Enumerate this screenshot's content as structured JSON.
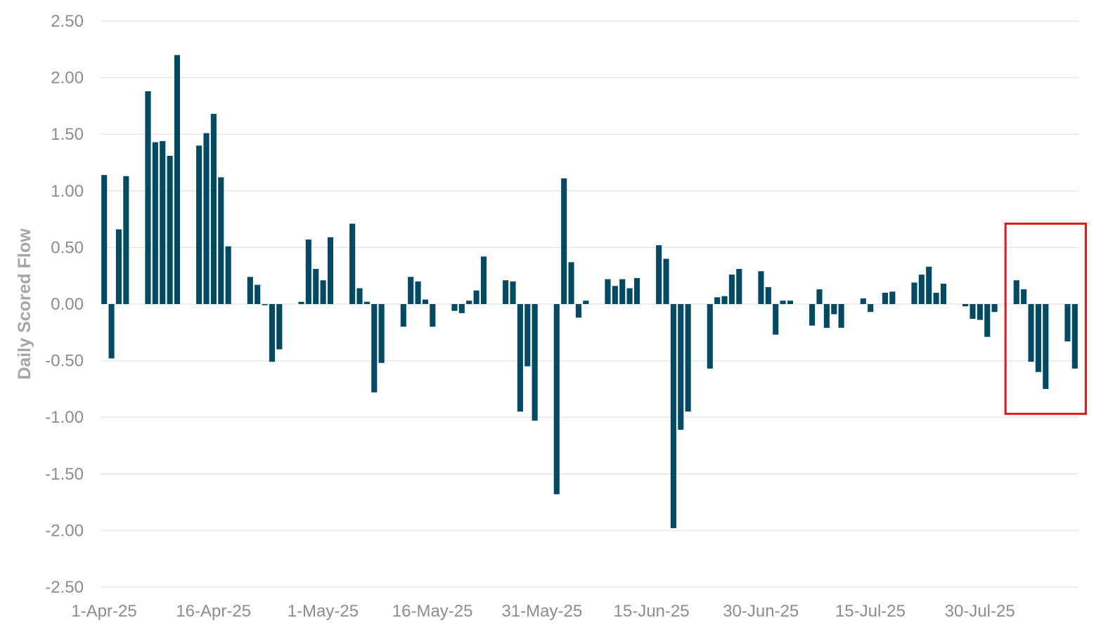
{
  "chart_data": {
    "type": "bar",
    "title": "",
    "xlabel": "",
    "ylabel": "Daily Scored Flow",
    "ylim": [
      -2.5,
      2.5
    ],
    "yticks": [
      "2.50",
      "2.00",
      "1.50",
      "1.00",
      "0.50",
      "0.00",
      "-0.50",
      "-1.00",
      "-1.50",
      "-2.00",
      "-2.50"
    ],
    "ytick_values": [
      2.5,
      2.0,
      1.5,
      1.0,
      0.5,
      0.0,
      -0.5,
      -1.0,
      -1.5,
      -2.0,
      -2.5
    ],
    "x_range": [
      "2025-04-01",
      "2025-08-13"
    ],
    "xticks": [
      {
        "label": "1-Apr-25",
        "date": "2025-04-01"
      },
      {
        "label": "16-Apr-25",
        "date": "2025-04-16"
      },
      {
        "label": "1-May-25",
        "date": "2025-05-01"
      },
      {
        "label": "16-May-25",
        "date": "2025-05-16"
      },
      {
        "label": "31-May-25",
        "date": "2025-05-31"
      },
      {
        "label": "15-Jun-25",
        "date": "2025-06-15"
      },
      {
        "label": "30-Jun-25",
        "date": "2025-06-30"
      },
      {
        "label": "15-Jul-25",
        "date": "2025-07-15"
      },
      {
        "label": "30-Jul-25",
        "date": "2025-07-30"
      }
    ],
    "bar_color": "#004b63",
    "grid": true,
    "series": [
      {
        "points": [
          [
            "2025-04-01",
            1.14
          ],
          [
            "2025-04-02",
            -0.48
          ],
          [
            "2025-04-03",
            0.66
          ],
          [
            "2025-04-04",
            1.13
          ],
          [
            "2025-04-07",
            1.88
          ],
          [
            "2025-04-08",
            1.43
          ],
          [
            "2025-04-09",
            1.44
          ],
          [
            "2025-04-10",
            1.31
          ],
          [
            "2025-04-11",
            2.2
          ],
          [
            "2025-04-14",
            1.4
          ],
          [
            "2025-04-15",
            1.51
          ],
          [
            "2025-04-16",
            1.68
          ],
          [
            "2025-04-17",
            1.12
          ],
          [
            "2025-04-18",
            0.51
          ],
          [
            "2025-04-21",
            0.24
          ],
          [
            "2025-04-22",
            0.17
          ],
          [
            "2025-04-23",
            -0.01
          ],
          [
            "2025-04-24",
            -0.51
          ],
          [
            "2025-04-25",
            -0.4
          ],
          [
            "2025-04-28",
            0.02
          ],
          [
            "2025-04-29",
            0.57
          ],
          [
            "2025-04-30",
            0.31
          ],
          [
            "2025-05-01",
            0.21
          ],
          [
            "2025-05-02",
            0.59
          ],
          [
            "2025-05-05",
            0.71
          ],
          [
            "2025-05-06",
            0.14
          ],
          [
            "2025-05-07",
            0.02
          ],
          [
            "2025-05-08",
            -0.78
          ],
          [
            "2025-05-09",
            -0.52
          ],
          [
            "2025-05-12",
            -0.2
          ],
          [
            "2025-05-13",
            0.24
          ],
          [
            "2025-05-14",
            0.2
          ],
          [
            "2025-05-15",
            0.04
          ],
          [
            "2025-05-16",
            -0.2
          ],
          [
            "2025-05-19",
            -0.06
          ],
          [
            "2025-05-20",
            -0.08
          ],
          [
            "2025-05-21",
            0.03
          ],
          [
            "2025-05-22",
            0.12
          ],
          [
            "2025-05-23",
            0.42
          ],
          [
            "2025-05-26",
            0.21
          ],
          [
            "2025-05-27",
            0.2
          ],
          [
            "2025-05-28",
            -0.95
          ],
          [
            "2025-05-29",
            -0.55
          ],
          [
            "2025-05-30",
            -1.03
          ],
          [
            "2025-06-02",
            -1.68
          ],
          [
            "2025-06-03",
            1.11
          ],
          [
            "2025-06-04",
            0.37
          ],
          [
            "2025-06-05",
            -0.12
          ],
          [
            "2025-06-06",
            0.03
          ],
          [
            "2025-06-09",
            0.22
          ],
          [
            "2025-06-10",
            0.16
          ],
          [
            "2025-06-11",
            0.22
          ],
          [
            "2025-06-12",
            0.14
          ],
          [
            "2025-06-13",
            0.23
          ],
          [
            "2025-06-16",
            0.52
          ],
          [
            "2025-06-17",
            0.4
          ],
          [
            "2025-06-18",
            -1.98
          ],
          [
            "2025-06-19",
            -1.11
          ],
          [
            "2025-06-20",
            -0.95
          ],
          [
            "2025-06-23",
            -0.57
          ],
          [
            "2025-06-24",
            0.06
          ],
          [
            "2025-06-25",
            0.07
          ],
          [
            "2025-06-26",
            0.26
          ],
          [
            "2025-06-27",
            0.31
          ],
          [
            "2025-06-30",
            0.29
          ],
          [
            "2025-07-01",
            0.15
          ],
          [
            "2025-07-02",
            -0.27
          ],
          [
            "2025-07-03",
            0.03
          ],
          [
            "2025-07-04",
            0.03
          ],
          [
            "2025-07-07",
            -0.19
          ],
          [
            "2025-07-08",
            0.13
          ],
          [
            "2025-07-09",
            -0.21
          ],
          [
            "2025-07-10",
            -0.09
          ],
          [
            "2025-07-11",
            -0.21
          ],
          [
            "2025-07-14",
            0.05
          ],
          [
            "2025-07-15",
            -0.07
          ],
          [
            "2025-07-17",
            0.1
          ],
          [
            "2025-07-18",
            0.11
          ],
          [
            "2025-07-21",
            0.19
          ],
          [
            "2025-07-22",
            0.26
          ],
          [
            "2025-07-23",
            0.33
          ],
          [
            "2025-07-24",
            0.1
          ],
          [
            "2025-07-25",
            0.18
          ],
          [
            "2025-07-28",
            -0.02
          ],
          [
            "2025-07-29",
            -0.13
          ],
          [
            "2025-07-30",
            -0.14
          ],
          [
            "2025-07-31",
            -0.29
          ],
          [
            "2025-08-01",
            -0.07
          ],
          [
            "2025-08-04",
            0.21
          ],
          [
            "2025-08-05",
            0.13
          ],
          [
            "2025-08-06",
            -0.51
          ],
          [
            "2025-08-07",
            -0.6
          ],
          [
            "2025-08-08",
            -0.75
          ],
          [
            "2025-08-11",
            -0.33
          ],
          [
            "2025-08-12",
            -0.57
          ]
        ]
      }
    ],
    "highlight": {
      "x_range": [
        "2025-08-03",
        "2025-08-14"
      ],
      "y_range": [
        -0.97,
        0.71
      ],
      "color": "#e2161b"
    }
  }
}
